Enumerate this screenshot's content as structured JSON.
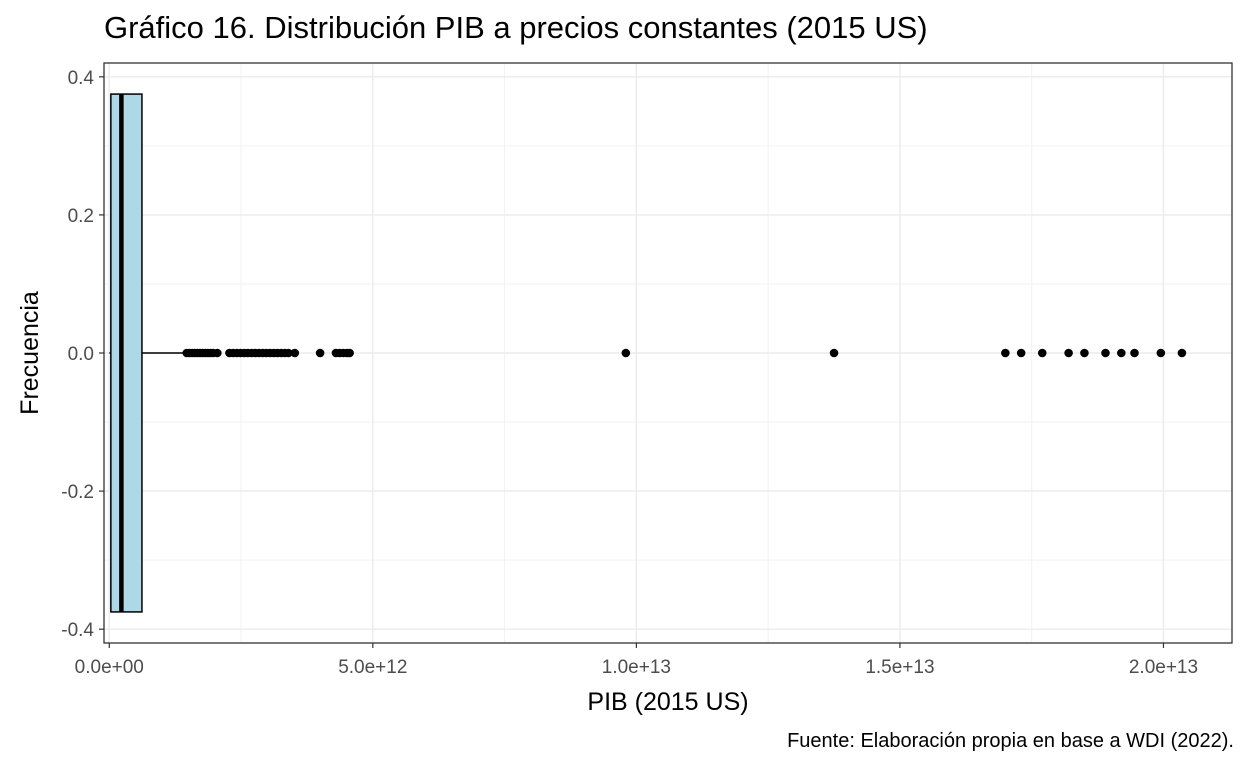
{
  "chart_data": {
    "type": "boxplot",
    "title": "Gráfico 16. Distribución PIB a precios constantes (2015 US)",
    "caption": "Fuente: Elaboración propia en base a WDI (2022).",
    "xlabel": "PIB (2015 US)",
    "ylabel": "Frecuencia",
    "xlim": [
      -100000000000.0,
      21300000000000.0
    ],
    "ylim": [
      -0.42,
      0.42
    ],
    "x_ticks": [
      0,
      5000000000000.0,
      10000000000000.0,
      15000000000000.0,
      20000000000000.0
    ],
    "x_tick_labels": [
      "0.0e+00",
      "5.0e+12",
      "1.0e+13",
      "1.5e+13",
      "2.0e+13"
    ],
    "y_ticks": [
      -0.4,
      -0.2,
      0.0,
      0.2,
      0.4
    ],
    "y_tick_labels": [
      "-0.4",
      "-0.2",
      "0.0",
      "0.2",
      "0.4"
    ],
    "grid": true,
    "fill_color": "#add8e6",
    "box": {
      "q1": 30000000000.0,
      "median": 230000000000.0,
      "q3": 620000000000.0,
      "whisker_low": 0,
      "whisker_high": 1450000000000.0,
      "y_low": -0.375,
      "y_high": 0.375
    },
    "outliers": [
      1470000000000.0,
      1520000000000.0,
      1570000000000.0,
      1620000000000.0,
      1670000000000.0,
      1720000000000.0,
      1770000000000.0,
      1820000000000.0,
      1870000000000.0,
      1920000000000.0,
      1970000000000.0,
      2050000000000.0,
      2280000000000.0,
      2350000000000.0,
      2420000000000.0,
      2490000000000.0,
      2560000000000.0,
      2630000000000.0,
      2700000000000.0,
      2770000000000.0,
      2840000000000.0,
      2910000000000.0,
      2980000000000.0,
      3050000000000.0,
      3120000000000.0,
      3190000000000.0,
      3260000000000.0,
      3330000000000.0,
      3400000000000.0,
      3520000000000.0,
      4000000000000.0,
      4300000000000.0,
      4370000000000.0,
      4440000000000.0,
      4510000000000.0,
      4560000000000.0,
      9800000000000.0,
      13750000000000.0,
      17000000000000.0,
      17300000000000.0,
      17700000000000.0,
      18200000000000.0,
      18500000000000.0,
      18900000000000.0,
      19200000000000.0,
      19450000000000.0,
      19950000000000.0,
      20350000000000.0
    ]
  }
}
